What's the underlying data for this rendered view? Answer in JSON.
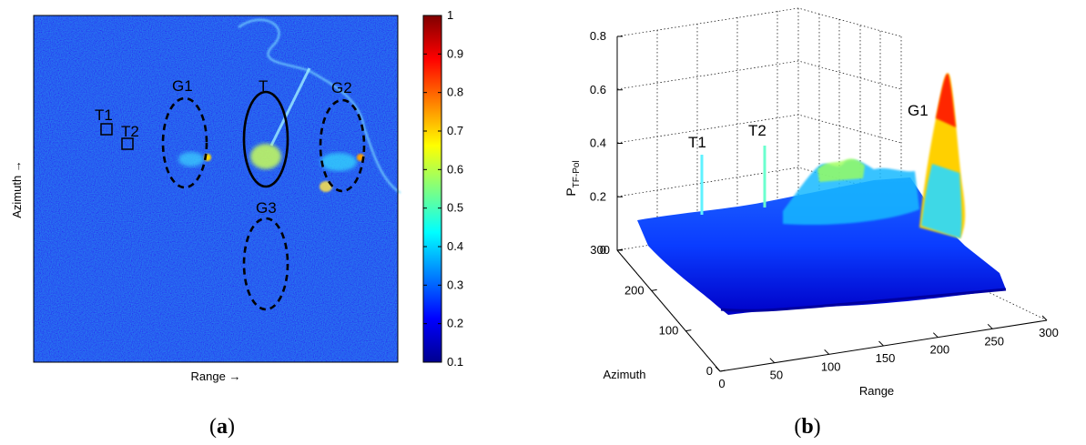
{
  "chart_data": [
    {
      "type": "heatmap",
      "panel_label": "(a)",
      "xlabel": "Range →",
      "ylabel": "Azimuth →",
      "colorbar": {
        "min": 0.1,
        "max": 1,
        "ticks": [
          "0.1",
          "0.2",
          "0.3",
          "0.4",
          "0.5",
          "0.6",
          "0.7",
          "0.8",
          "0.9",
          "1"
        ],
        "colormap": "jet"
      },
      "background_level": 0.15,
      "bright_features": [
        {
          "name": "T",
          "approx_value": 0.65
        },
        {
          "name": "G1",
          "approx_value": 0.55
        },
        {
          "name": "G2",
          "approx_value": 0.7
        },
        {
          "name": "G3",
          "approx_value": 0.2
        },
        {
          "name": "T1",
          "approx_value": 0.2
        },
        {
          "name": "T2",
          "approx_value": 0.2
        }
      ],
      "annotations": {
        "ellipses": [
          "G1",
          "T",
          "G2",
          "G3"
        ],
        "squares": [
          "T1",
          "T2"
        ]
      }
    },
    {
      "type": "surface3d",
      "panel_label": "(b)",
      "xlabel": "Range",
      "ylabel": "Azimuth",
      "zlabel_main": "P",
      "zlabel_sub": "TF-Pol",
      "xlim": [
        0,
        300
      ],
      "ylim": [
        0,
        300
      ],
      "zlim": [
        0,
        0.8
      ],
      "xticks": [
        "0",
        "50",
        "100",
        "150",
        "200",
        "250",
        "300"
      ],
      "yticks": [
        "0",
        "100",
        "200",
        "300"
      ],
      "zticks": [
        "0",
        "0.2",
        "0.4",
        "0.6",
        "0.8"
      ],
      "grid": true,
      "colormap": "jet",
      "peaks": [
        {
          "label": "T1",
          "range": 18,
          "azimuth": 175,
          "value": 0.42
        },
        {
          "label": "T2",
          "range": 48,
          "azimuth": 165,
          "value": 0.43
        },
        {
          "label": "G1",
          "range": 185,
          "azimuth": 100,
          "value": 0.7
        }
      ]
    }
  ]
}
